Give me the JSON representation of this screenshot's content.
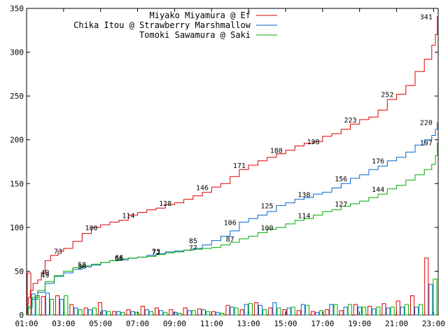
{
  "chart_data": {
    "type": "line",
    "title": "",
    "xlabel": "",
    "ylabel": "",
    "xlim": [
      1,
      23.25
    ],
    "ylim": [
      0,
      350
    ],
    "x_ticks": [
      "01:00",
      "03:00",
      "05:00",
      "07:00",
      "09:00",
      "11:00",
      "13:00",
      "15:00",
      "17:00",
      "19:00",
      "21:00",
      "23:00"
    ],
    "y_ticks": [
      0,
      50,
      100,
      150,
      200,
      250,
      300,
      350
    ],
    "legend_position": "top-right",
    "grid": false,
    "series": [
      {
        "name": "Miyako Miyamura @ Ef",
        "color": "#dd0000",
        "points": [
          [
            1,
            0
          ],
          [
            1.05,
            12
          ],
          [
            1.1,
            20
          ],
          [
            1.2,
            28
          ],
          [
            1.35,
            36
          ],
          [
            1.6,
            40
          ],
          [
            1.8,
            48
          ],
          [
            2.0,
            62
          ],
          [
            2.3,
            68
          ],
          [
            2.7,
            73
          ],
          [
            3.0,
            76
          ],
          [
            3.5,
            84
          ],
          [
            4.0,
            93
          ],
          [
            4.5,
            100
          ],
          [
            5.0,
            103
          ],
          [
            5.5,
            106
          ],
          [
            6.0,
            108
          ],
          [
            6.5,
            114
          ],
          [
            7.0,
            117
          ],
          [
            7.5,
            120
          ],
          [
            8.0,
            122
          ],
          [
            8.5,
            126
          ],
          [
            9.0,
            128
          ],
          [
            9.5,
            132
          ],
          [
            10.0,
            136
          ],
          [
            10.5,
            140
          ],
          [
            11.0,
            146
          ],
          [
            11.5,
            150
          ],
          [
            12.0,
            158
          ],
          [
            12.5,
            166
          ],
          [
            13.0,
            171
          ],
          [
            13.5,
            176
          ],
          [
            14.0,
            180
          ],
          [
            14.5,
            184
          ],
          [
            15.0,
            188
          ],
          [
            15.5,
            193
          ],
          [
            16.0,
            196
          ],
          [
            16.5,
            198
          ],
          [
            17.0,
            204
          ],
          [
            17.5,
            207
          ],
          [
            18.0,
            212
          ],
          [
            18.5,
            218
          ],
          [
            19.0,
            223
          ],
          [
            19.5,
            226
          ],
          [
            20.0,
            234
          ],
          [
            20.5,
            246
          ],
          [
            21.0,
            252
          ],
          [
            21.5,
            262
          ],
          [
            22.0,
            278
          ],
          [
            22.5,
            292
          ],
          [
            22.9,
            308
          ],
          [
            23.1,
            320
          ],
          [
            23.2,
            341
          ]
        ],
        "labels": [
          {
            "x": 2.7,
            "y": 73,
            "text": "73"
          },
          {
            "x": 4.5,
            "y": 100,
            "text": "100"
          },
          {
            "x": 6.5,
            "y": 114,
            "text": "114"
          },
          {
            "x": 8.5,
            "y": 128,
            "text": "128"
          },
          {
            "x": 10.5,
            "y": 146,
            "text": "146"
          },
          {
            "x": 12.5,
            "y": 171,
            "text": "171"
          },
          {
            "x": 14.5,
            "y": 188,
            "text": "188"
          },
          {
            "x": 16.5,
            "y": 198,
            "text": "198"
          },
          {
            "x": 18.5,
            "y": 223,
            "text": "223"
          },
          {
            "x": 20.5,
            "y": 252,
            "text": "252"
          },
          {
            "x": 22.6,
            "y": 341,
            "text": "341"
          }
        ]
      },
      {
        "name": "Chika Itou @ Strawberry Marshmallow",
        "color": "#0066cc",
        "points": [
          [
            1,
            0
          ],
          [
            1.1,
            8
          ],
          [
            1.3,
            18
          ],
          [
            1.6,
            26
          ],
          [
            2.0,
            36
          ],
          [
            2.5,
            44
          ],
          [
            3.0,
            48
          ],
          [
            3.5,
            52
          ],
          [
            4.0,
            55
          ],
          [
            4.5,
            57
          ],
          [
            5.0,
            60
          ],
          [
            5.5,
            62
          ],
          [
            6.0,
            63
          ],
          [
            6.5,
            65
          ],
          [
            7.0,
            66
          ],
          [
            7.5,
            68
          ],
          [
            8.0,
            70
          ],
          [
            8.5,
            72
          ],
          [
            9.0,
            73
          ],
          [
            9.5,
            74
          ],
          [
            10.0,
            76
          ],
          [
            10.5,
            80
          ],
          [
            11.0,
            85
          ],
          [
            11.5,
            90
          ],
          [
            12.0,
            96
          ],
          [
            12.5,
            106
          ],
          [
            13.0,
            110
          ],
          [
            13.5,
            114
          ],
          [
            14.0,
            118
          ],
          [
            14.5,
            125
          ],
          [
            15.0,
            128
          ],
          [
            15.5,
            132
          ],
          [
            16.0,
            134
          ],
          [
            16.5,
            138
          ],
          [
            17.0,
            140
          ],
          [
            17.5,
            145
          ],
          [
            18.0,
            150
          ],
          [
            18.5,
            156
          ],
          [
            19.0,
            160
          ],
          [
            19.5,
            166
          ],
          [
            20.0,
            170
          ],
          [
            20.5,
            176
          ],
          [
            21.0,
            180
          ],
          [
            21.5,
            186
          ],
          [
            22.0,
            194
          ],
          [
            22.5,
            200
          ],
          [
            22.9,
            205
          ],
          [
            23.1,
            212
          ],
          [
            23.2,
            220
          ]
        ],
        "labels": [
          {
            "x": 2.0,
            "y": 46,
            "text": "49"
          },
          {
            "x": 4.0,
            "y": 58,
            "text": "58"
          },
          {
            "x": 6.0,
            "y": 66,
            "text": "66"
          },
          {
            "x": 8.0,
            "y": 73,
            "text": "73"
          },
          {
            "x": 10.0,
            "y": 85,
            "text": "85"
          },
          {
            "x": 12.0,
            "y": 106,
            "text": "106"
          },
          {
            "x": 14.0,
            "y": 125,
            "text": "125"
          },
          {
            "x": 16.0,
            "y": 138,
            "text": "138"
          },
          {
            "x": 18.0,
            "y": 156,
            "text": "156"
          },
          {
            "x": 20.0,
            "y": 176,
            "text": "176"
          },
          {
            "x": 22.6,
            "y": 220,
            "text": "220"
          }
        ]
      },
      {
        "name": "Tomoki Sawamura @ Saki",
        "color": "#00aa00",
        "points": [
          [
            1,
            0
          ],
          [
            1.1,
            10
          ],
          [
            1.3,
            20
          ],
          [
            1.6,
            28
          ],
          [
            2.0,
            38
          ],
          [
            2.5,
            45
          ],
          [
            3.0,
            50
          ],
          [
            3.5,
            54
          ],
          [
            4.0,
            56
          ],
          [
            4.5,
            58
          ],
          [
            5.0,
            60
          ],
          [
            5.5,
            62
          ],
          [
            6.0,
            64
          ],
          [
            6.5,
            65
          ],
          [
            7.0,
            66
          ],
          [
            7.5,
            67
          ],
          [
            8.0,
            69
          ],
          [
            8.5,
            71
          ],
          [
            9.0,
            72
          ],
          [
            9.5,
            74
          ],
          [
            10.0,
            75
          ],
          [
            10.5,
            76
          ],
          [
            11.0,
            77
          ],
          [
            11.5,
            80
          ],
          [
            12.0,
            83
          ],
          [
            12.5,
            87
          ],
          [
            13.0,
            90
          ],
          [
            13.5,
            94
          ],
          [
            14.0,
            98
          ],
          [
            14.5,
            100
          ],
          [
            15.0,
            104
          ],
          [
            15.5,
            108
          ],
          [
            16.0,
            110
          ],
          [
            16.5,
            114
          ],
          [
            17.0,
            118
          ],
          [
            17.5,
            120
          ],
          [
            18.0,
            124
          ],
          [
            18.5,
            127
          ],
          [
            19.0,
            130
          ],
          [
            19.5,
            134
          ],
          [
            20.0,
            138
          ],
          [
            20.5,
            144
          ],
          [
            21.0,
            148
          ],
          [
            21.5,
            154
          ],
          [
            22.0,
            160
          ],
          [
            22.5,
            166
          ],
          [
            22.9,
            172
          ],
          [
            23.1,
            182
          ],
          [
            23.2,
            197
          ]
        ],
        "labels": [
          {
            "x": 2.0,
            "y": 49,
            "text": "49"
          },
          {
            "x": 4.0,
            "y": 56,
            "text": "56"
          },
          {
            "x": 6.0,
            "y": 65,
            "text": "65"
          },
          {
            "x": 8.0,
            "y": 72,
            "text": "72"
          },
          {
            "x": 10.0,
            "y": 77,
            "text": "77"
          },
          {
            "x": 12.0,
            "y": 87,
            "text": "87"
          },
          {
            "x": 14.0,
            "y": 100,
            "text": "100"
          },
          {
            "x": 16.0,
            "y": 114,
            "text": "114"
          },
          {
            "x": 18.0,
            "y": 127,
            "text": "127"
          },
          {
            "x": 20.0,
            "y": 144,
            "text": "144"
          },
          {
            "x": 22.6,
            "y": 197,
            "text": "197"
          }
        ]
      }
    ],
    "bars": [
      [
        48,
        24,
        22
      ],
      [
        21,
        25,
        18
      ],
      [
        22,
        18,
        22
      ],
      [
        12,
        8,
        6
      ],
      [
        8,
        6,
        8
      ],
      [
        14,
        5,
        4
      ],
      [
        4,
        4,
        3
      ],
      [
        6,
        4,
        3
      ],
      [
        10,
        6,
        4
      ],
      [
        8,
        5,
        3
      ],
      [
        6,
        3,
        2
      ],
      [
        8,
        5,
        5
      ],
      [
        7,
        6,
        4
      ],
      [
        4,
        3,
        2
      ],
      [
        11,
        9,
        8
      ],
      [
        6,
        12,
        13
      ],
      [
        14,
        11,
        6
      ],
      [
        8,
        14,
        8
      ],
      [
        6,
        8,
        9
      ],
      [
        5,
        12,
        11
      ],
      [
        4,
        3,
        5
      ],
      [
        6,
        12,
        12
      ],
      [
        5,
        9,
        12
      ],
      [
        12,
        9,
        9
      ],
      [
        10,
        7,
        9
      ],
      [
        13,
        8,
        9
      ],
      [
        16,
        9,
        12
      ],
      [
        22,
        9,
        12
      ],
      [
        65,
        35,
        41
      ]
    ]
  }
}
